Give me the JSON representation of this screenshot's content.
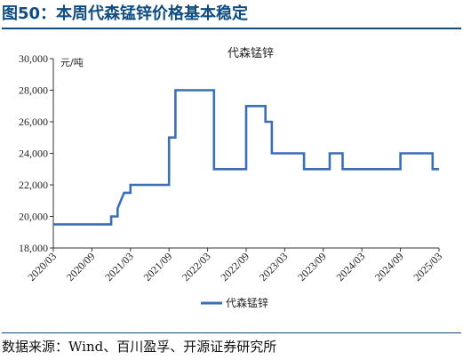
{
  "figure": {
    "title": "图50：本周代森锰锌价格基本稳定",
    "source": "数据来源：Wind、百川盈孚、开源证券研究所"
  },
  "colors": {
    "line": "#3a6fb5",
    "title": "#0f4c81",
    "axis": "#333333"
  },
  "chart_data": {
    "type": "line",
    "title": "代森锰锌",
    "ylabel": "元/吨",
    "ylim": [
      18000,
      30000
    ],
    "yticks": [
      18000,
      20000,
      22000,
      24000,
      26000,
      28000,
      30000
    ],
    "ytick_labels": [
      "18,000",
      "20,000",
      "22,000",
      "24,000",
      "26,000",
      "28,000",
      "30,000"
    ],
    "xlim": [
      "2020-03",
      "2025-03"
    ],
    "xtick_labels": [
      "2020/03",
      "2020/09",
      "2021/03",
      "2021/09",
      "2022/03",
      "2022/09",
      "2023/03",
      "2023/09",
      "2024/03",
      "2024/09",
      "2025/03"
    ],
    "legend": "bottom-center",
    "series": [
      {
        "name": "代森锰锌",
        "step": true,
        "points": [
          [
            "2020-03",
            19500
          ],
          [
            "2020-12",
            19500
          ],
          [
            "2020-12",
            20000
          ],
          [
            "2021-01",
            20000
          ],
          [
            "2021-01",
            20500
          ],
          [
            "2021-01",
            20500
          ],
          [
            "2021-02",
            21500
          ],
          [
            "2021-03",
            21500
          ],
          [
            "2021-03",
            22000
          ],
          [
            "2021-06",
            22000
          ],
          [
            "2021-09",
            22000
          ],
          [
            "2021-09",
            25000
          ],
          [
            "2021-10",
            25000
          ],
          [
            "2021-10",
            28000
          ],
          [
            "2022-04",
            28000
          ],
          [
            "2022-04",
            23000
          ],
          [
            "2022-09",
            23000
          ],
          [
            "2022-09",
            27000
          ],
          [
            "2022-12",
            27000
          ],
          [
            "2022-12",
            26000
          ],
          [
            "2023-01",
            26000
          ],
          [
            "2023-01",
            24000
          ],
          [
            "2023-06",
            24000
          ],
          [
            "2023-06",
            23000
          ],
          [
            "2023-10",
            23000
          ],
          [
            "2023-10",
            24000
          ],
          [
            "2023-12",
            24000
          ],
          [
            "2023-12",
            23000
          ],
          [
            "2024-09",
            23000
          ],
          [
            "2024-09",
            24000
          ],
          [
            "2025-02",
            24000
          ],
          [
            "2025-02",
            23000
          ],
          [
            "2025-03",
            23000
          ]
        ]
      }
    ]
  }
}
